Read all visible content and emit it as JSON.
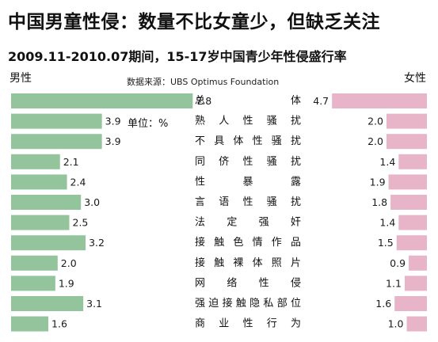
{
  "chart_data": {
    "type": "bar",
    "title": "中国男童性侵：数量不比女童少，但缺乏关注",
    "subtitle": "2009.11-2010.07期间，15-17岁中国青少年性侵盛行率",
    "source": "数据来源：UBS Optimus Foundation",
    "unit": "单位：%",
    "categories": [
      "总体",
      "熟人性骚扰",
      "不具体性骚扰",
      "同侪性骚扰",
      "性暴露",
      "言语性骚扰",
      "法定强奸",
      "接触色情作品",
      "接触裸体照片",
      "网络性侵",
      "强迫接触隐私部位",
      "商业性行为"
    ],
    "series": [
      {
        "name": "男性",
        "values": [
          7.8,
          3.9,
          3.9,
          2.1,
          2.4,
          3.0,
          2.5,
          3.2,
          2.0,
          1.9,
          3.1,
          1.6
        ],
        "color": "#94c49c"
      },
      {
        "name": "女性",
        "values": [
          4.7,
          2.0,
          2.0,
          1.4,
          1.9,
          1.8,
          1.4,
          1.5,
          0.9,
          1.1,
          1.6,
          1.0
        ],
        "color": "#e8b5c8"
      }
    ],
    "grid": false,
    "legend": "top"
  }
}
